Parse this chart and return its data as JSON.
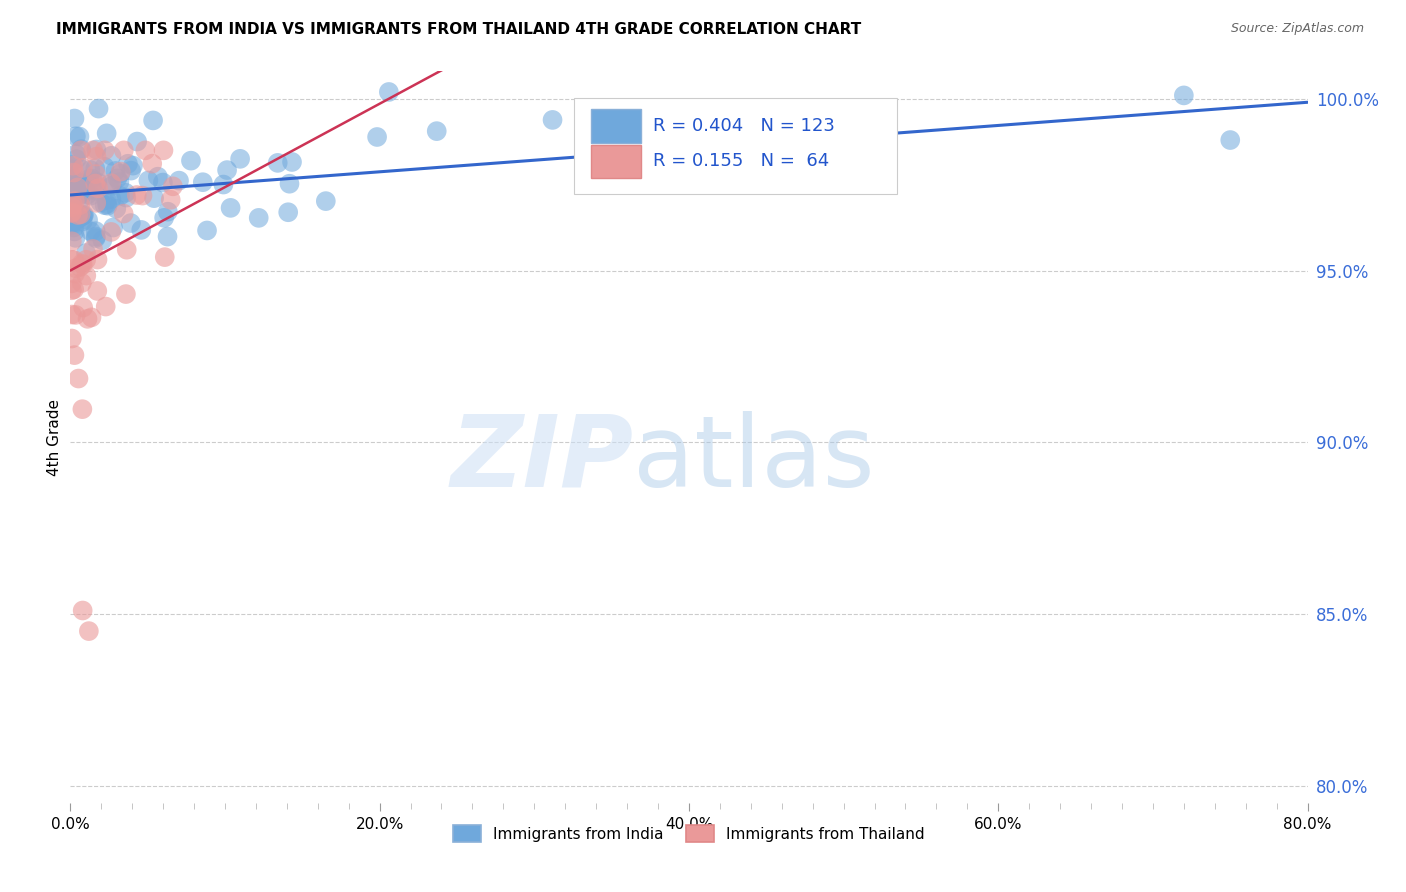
{
  "title": "IMMIGRANTS FROM INDIA VS IMMIGRANTS FROM THAILAND 4TH GRADE CORRELATION CHART",
  "source": "Source: ZipAtlas.com",
  "ylabel_label": "4th Grade",
  "xlim": [
    0.0,
    0.8
  ],
  "ylim": [
    0.795,
    1.008
  ],
  "legend_india_R": "0.404",
  "legend_india_N": "123",
  "legend_thailand_R": "0.155",
  "legend_thailand_N": "64",
  "india_color": "#6fa8dc",
  "india_edge_color": "#6fa8dc",
  "thailand_color": "#ea9999",
  "thailand_edge_color": "#ea9999",
  "india_line_color": "#3366cc",
  "thailand_line_color": "#cc3355",
  "grid_color": "#cccccc",
  "right_tick_color": "#3a6dd8",
  "ytick_vals": [
    0.8,
    0.85,
    0.9,
    0.95,
    1.0
  ],
  "ytick_labels": [
    "80.0%",
    "85.0%",
    "90.0%",
    "95.0%",
    "100.0%"
  ],
  "xtick_vals": [
    0.0,
    0.2,
    0.4,
    0.6,
    0.8
  ],
  "xtick_labels": [
    "0.0%",
    "20.0%",
    "40.0%",
    "60.0%",
    "80.0%"
  ],
  "india_scatter_seed": 42,
  "thailand_scatter_seed": 99
}
